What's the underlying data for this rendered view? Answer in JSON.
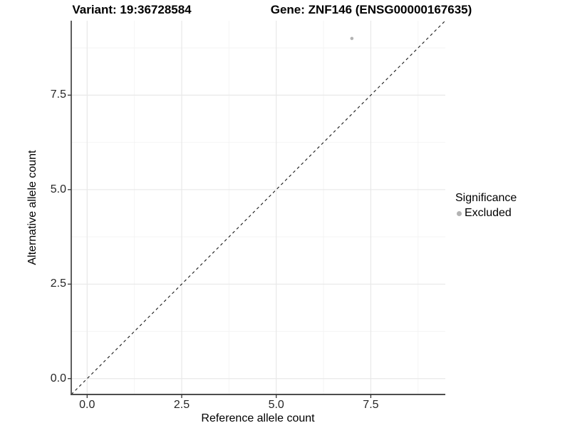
{
  "header": {
    "variant_title": "Variant: 19:36728584",
    "gene_title": "Gene: ZNF146 (ENSG00000167635)"
  },
  "chart_data": {
    "type": "scatter",
    "title": "Variant: 19:36728584  |  Gene: ZNF146 (ENSG00000167635)",
    "xlabel": "Reference allele count",
    "ylabel": "Alternative allele count",
    "xlim": [
      -0.42,
      9.47
    ],
    "ylim": [
      -0.42,
      9.47
    ],
    "x_ticks": [
      0.0,
      2.5,
      5.0,
      7.5
    ],
    "y_ticks": [
      0.0,
      2.5,
      5.0,
      7.5
    ],
    "x_tick_labels": [
      "0.0",
      "2.5",
      "5.0",
      "7.5"
    ],
    "y_tick_labels": [
      "0.0",
      "2.5",
      "5.0",
      "7.5"
    ],
    "x_minor_ticks": [
      1.25,
      3.75,
      6.25,
      8.75
    ],
    "y_minor_ticks": [
      1.25,
      3.75,
      6.25,
      8.75
    ],
    "grid": true,
    "series": [
      {
        "name": "Excluded",
        "points": [
          {
            "x": 7,
            "y": 9
          }
        ]
      }
    ],
    "reference_line": {
      "type": "identity",
      "style": "dashed",
      "from": -0.42,
      "to": 9.47
    },
    "legend": {
      "title": "Significance",
      "position": "right",
      "entries": [
        {
          "label": "Excluded",
          "color": "#b3b3b3"
        }
      ]
    }
  },
  "colors": {
    "background": "#ffffff",
    "grid_major": "#e8e8e8",
    "grid_minor": "#f4f4f4",
    "axis_line": "#4d4d4d",
    "tick_mark": "#333333",
    "dashed_line": "#1a1a1a",
    "point": "#b3b3b3",
    "text": "#000000"
  }
}
